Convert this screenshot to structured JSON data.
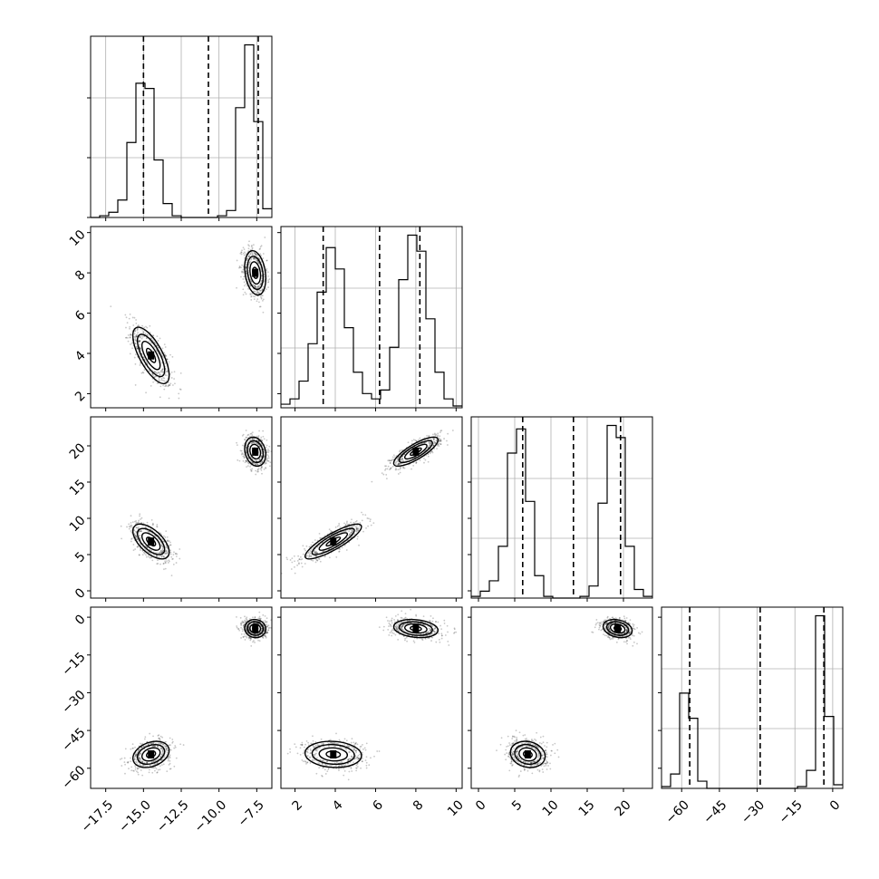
{
  "chart_data": {
    "type": "corner",
    "grid": true,
    "parameters": [
      {
        "range": [
          -18.5,
          -6.5
        ],
        "ticks": [
          -17.5,
          -15.0,
          -12.5,
          -10.0,
          -7.5
        ],
        "tick_labels": [
          "−17.5",
          "−15.0",
          "−12.5",
          "−10.0",
          "−7.5"
        ],
        "quantiles": [
          -15.0,
          -10.7,
          -7.4
        ],
        "modes": [
          {
            "mean": -14.5,
            "sd": 0.6,
            "weight": 0.5
          },
          {
            "mean": -7.6,
            "sd": 0.35,
            "weight": 0.5
          }
        ],
        "histogram": {
          "bin_edges": [
            -18.5,
            -17.9,
            -17.3,
            -16.7,
            -16.1,
            -15.5,
            -14.9,
            -14.3,
            -13.7,
            -13.1,
            -12.5,
            -11.9,
            -11.3,
            -10.7,
            -10.1,
            -9.5,
            -8.9,
            -8.3,
            -7.7,
            -7.1,
            -6.5
          ],
          "counts": [
            0,
            0.01,
            0.03,
            0.1,
            0.43,
            0.77,
            0.74,
            0.33,
            0.08,
            0.01,
            0,
            0,
            0,
            0,
            0.01,
            0.04,
            0.63,
            0.99,
            0.55,
            0.05
          ]
        }
      },
      {
        "range": [
          1.3,
          10.3
        ],
        "ticks": [
          2,
          4,
          6,
          8,
          10
        ],
        "tick_labels": [
          "2",
          "4",
          "6",
          "8",
          "10"
        ],
        "quantiles": [
          3.4,
          6.2,
          8.2
        ],
        "modes": [
          {
            "mean": 3.9,
            "sd": 0.7,
            "weight": 0.5
          },
          {
            "mean": 8.0,
            "sd": 0.55,
            "weight": 0.5
          }
        ],
        "histogram": {
          "bin_edges": [
            1.3,
            1.75,
            2.2,
            2.65,
            3.1,
            3.55,
            4.0,
            4.45,
            4.9,
            5.35,
            5.8,
            6.25,
            6.7,
            7.15,
            7.6,
            8.05,
            8.5,
            8.95,
            9.4,
            9.85,
            10.3
          ],
          "counts": [
            0.02,
            0.05,
            0.15,
            0.36,
            0.65,
            0.9,
            0.78,
            0.45,
            0.2,
            0.08,
            0.05,
            0.1,
            0.34,
            0.72,
            0.97,
            0.88,
            0.5,
            0.2,
            0.05,
            0.01
          ]
        }
      },
      {
        "range": [
          -1.0,
          24.0
        ],
        "ticks": [
          0,
          5,
          10,
          15,
          20
        ],
        "tick_labels": [
          "0",
          "5",
          "10",
          "15",
          "20"
        ],
        "quantiles": [
          6.1,
          13.1,
          19.6
        ],
        "modes": [
          {
            "mean": 6.8,
            "sd": 1.2,
            "weight": 0.5
          },
          {
            "mean": 19.2,
            "sd": 1.0,
            "weight": 0.5
          }
        ],
        "histogram": {
          "bin_edges": [
            -1.0,
            0.25,
            1.5,
            2.75,
            4.0,
            5.25,
            6.5,
            7.75,
            9.0,
            10.25,
            11.5,
            12.75,
            14.0,
            15.25,
            16.5,
            17.75,
            19.0,
            20.25,
            21.5,
            22.75,
            24.0
          ],
          "counts": [
            0.01,
            0.04,
            0.1,
            0.3,
            0.84,
            0.98,
            0.56,
            0.13,
            0.01,
            0,
            0,
            0,
            0.01,
            0.07,
            0.55,
            1.0,
            0.93,
            0.3,
            0.05,
            0.01
          ]
        }
      },
      {
        "range": [
          -68,
          4
        ],
        "ticks": [
          -60,
          -45,
          -30,
          -15,
          0
        ],
        "tick_labels": [
          "−60",
          "−45",
          "−30",
          "−15",
          "0"
        ],
        "quantiles": [
          -56.8,
          -28.8,
          -3.5
        ],
        "modes": [
          {
            "mean": -54.5,
            "sd": 2.6,
            "weight": 0.5
          },
          {
            "mean": -4.5,
            "sd": 1.8,
            "weight": 0.5
          }
        ],
        "histogram": {
          "bin_edges": [
            -68,
            -64.4,
            -60.8,
            -57.2,
            -53.6,
            -50.0,
            -46.4,
            -42.8,
            -39.2,
            -35.6,
            -32.0,
            -28.4,
            -24.8,
            -21.2,
            -17.6,
            -14.0,
            -10.4,
            -6.8,
            -3.2,
            0.4,
            4.0
          ],
          "counts": [
            0.01,
            0.08,
            0.53,
            0.39,
            0.04,
            0,
            0,
            0,
            0,
            0,
            0,
            0,
            0,
            0,
            0,
            0.01,
            0.1,
            0.96,
            0.4,
            0.02
          ]
        }
      }
    ],
    "pair_correlations": {
      "0-1": [
        -0.7,
        -0.25
      ],
      "0-2": [
        -0.6,
        -0.2
      ],
      "1-2": [
        0.85,
        0.8
      ],
      "0-3": [
        0.3,
        -0.05
      ],
      "1-3": [
        -0.1,
        -0.2
      ],
      "2-3": [
        -0.15,
        -0.25
      ]
    },
    "contour_levels_sigma": [
      0.5,
      1.0,
      1.5,
      2.0
    ]
  }
}
